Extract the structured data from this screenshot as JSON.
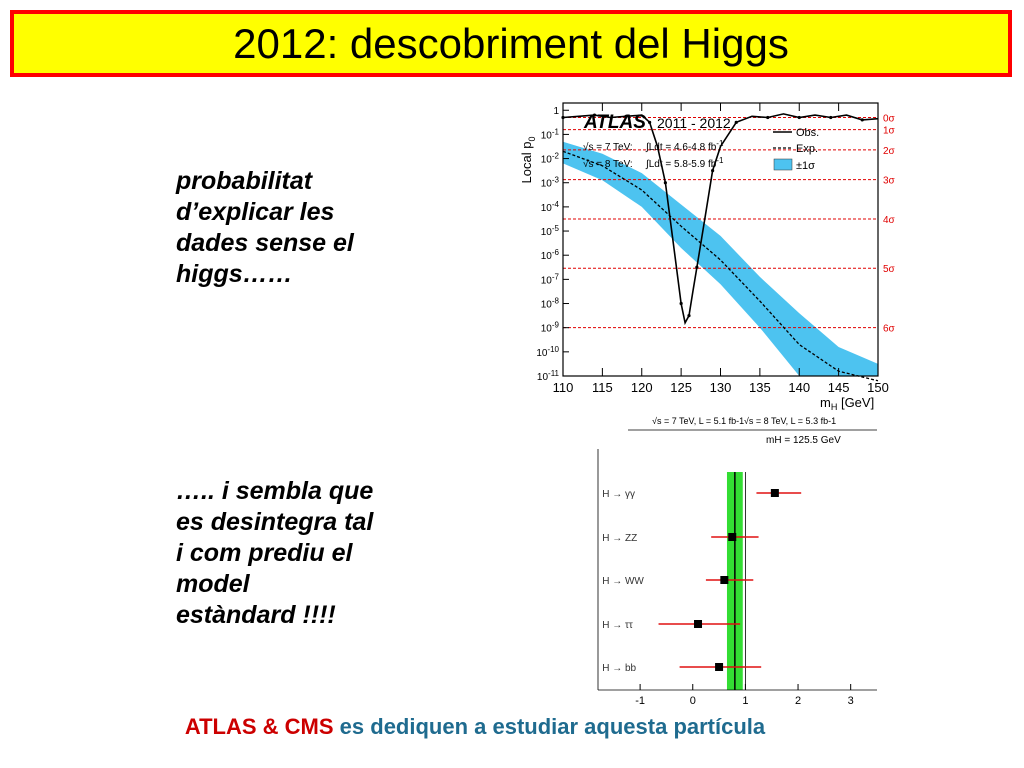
{
  "slide": {
    "title": "2012: descobriment del Higgs",
    "text1_lines": [
      "probabilitat",
      "d’explicar les",
      "dades sense el",
      "higgs……"
    ],
    "text2_lines": [
      "….. i sembla que",
      "es desintegra tal",
      "i com prediu el",
      "model",
      "estàndard !!!!"
    ],
    "footer_part1": "ATLAS & CMS",
    "footer_part2": "es dediquen  a estudiar aquesta partícula",
    "colors": {
      "title_bg": "#ffff00",
      "title_border": "#ff0000",
      "footer_red": "#cc0000",
      "footer_teal": "#1f6b8f"
    }
  },
  "chart_data": [
    {
      "type": "line",
      "experiment": "ATLAS",
      "years": "2011 - 2012",
      "ylabel": "Local p",
      "ylabel_sub": "0",
      "xlabel": "m",
      "xlabel_sub": "H",
      "xlabel_unit": "[GeV]",
      "xlim": [
        110,
        150
      ],
      "x_ticks": [
        110,
        115,
        120,
        125,
        130,
        135,
        140,
        145,
        150
      ],
      "ylim_log10": [
        -11,
        0.3
      ],
      "y_tick_labels": [
        "1",
        "10-1",
        "10-2",
        "10-3",
        "10-4",
        "10-5",
        "10-6",
        "10-7",
        "10-8",
        "10-9",
        "10-10",
        "10-11"
      ],
      "energy_lines": [
        {
          "sqrts": "√s = 7 TeV:",
          "lumi": "∫Ldt = 4.6-4.8 fb-1"
        },
        {
          "sqrts": "√s = 8 TeV:",
          "lumi": "∫Ldt = 5.8-5.9 fb-1"
        }
      ],
      "legend": [
        "Obs.",
        "Exp.",
        "±1σ"
      ],
      "sigma_lines": [
        {
          "label": "0σ",
          "log10p": -0.301
        },
        {
          "label": "1σ",
          "log10p": -0.8
        },
        {
          "label": "2σ",
          "log10p": -1.64
        },
        {
          "label": "3σ",
          "log10p": -2.87
        },
        {
          "label": "4σ",
          "log10p": -4.5
        },
        {
          "label": "5σ",
          "log10p": -6.54
        },
        {
          "label": "6σ",
          "log10p": -9.0
        }
      ],
      "series": [
        {
          "name": "Obs.",
          "x": [
            110,
            112,
            114,
            116,
            118,
            120,
            121,
            122,
            123,
            124,
            125,
            125.5,
            126,
            126.5,
            127,
            128,
            129,
            130,
            132,
            134,
            136,
            138,
            140,
            142,
            144,
            146,
            148,
            150
          ],
          "log10p": [
            -0.3,
            -0.25,
            -0.2,
            -0.3,
            -0.25,
            -0.2,
            -0.5,
            -1.5,
            -3.0,
            -5.5,
            -8.0,
            -8.8,
            -8.5,
            -7.5,
            -6.5,
            -4.5,
            -2.5,
            -1.5,
            -0.5,
            -0.25,
            -0.3,
            -0.15,
            -0.3,
            -0.2,
            -0.3,
            -0.2,
            -0.4,
            -0.35
          ]
        },
        {
          "name": "Exp.",
          "x": [
            110,
            115,
            120,
            125,
            130,
            135,
            140,
            145,
            150
          ],
          "log10p": [
            -1.7,
            -2.3,
            -3.3,
            -4.8,
            -6.2,
            -7.9,
            -9.7,
            -10.8,
            -11.2
          ]
        }
      ],
      "band": {
        "x": [
          110,
          115,
          120,
          125,
          130,
          135,
          140,
          145,
          150
        ],
        "low": [
          -2.2,
          -2.9,
          -4.0,
          -5.7,
          -7.2,
          -9.0,
          -11,
          -11,
          -11
        ],
        "high": [
          -1.3,
          -1.8,
          -2.6,
          -3.9,
          -5.2,
          -6.9,
          -8.4,
          -9.8,
          -10.5
        ]
      }
    },
    {
      "type": "scatter",
      "header_left": "√s = 7 TeV, L = 5.1 fb-1",
      "header_right": "√s = 8 TeV, L = 5.3 fb-1",
      "mass_label": "mH = 125.5 GeV",
      "xlim": [
        -1.8,
        3.5
      ],
      "x_ticks": [
        -1,
        0,
        1,
        2,
        3
      ],
      "sm_value": 1,
      "best_fit": 0.8,
      "band": [
        0.65,
        0.95
      ],
      "categories": [
        "H → γγ",
        "H → ZZ",
        "H → WW",
        "H → ττ",
        "H → bb"
      ],
      "values": [
        1.56,
        0.75,
        0.6,
        0.1,
        0.5
      ],
      "err_low": [
        0.35,
        0.4,
        0.35,
        0.75,
        0.75
      ],
      "err_high": [
        0.5,
        0.5,
        0.55,
        0.8,
        0.8
      ]
    }
  ]
}
